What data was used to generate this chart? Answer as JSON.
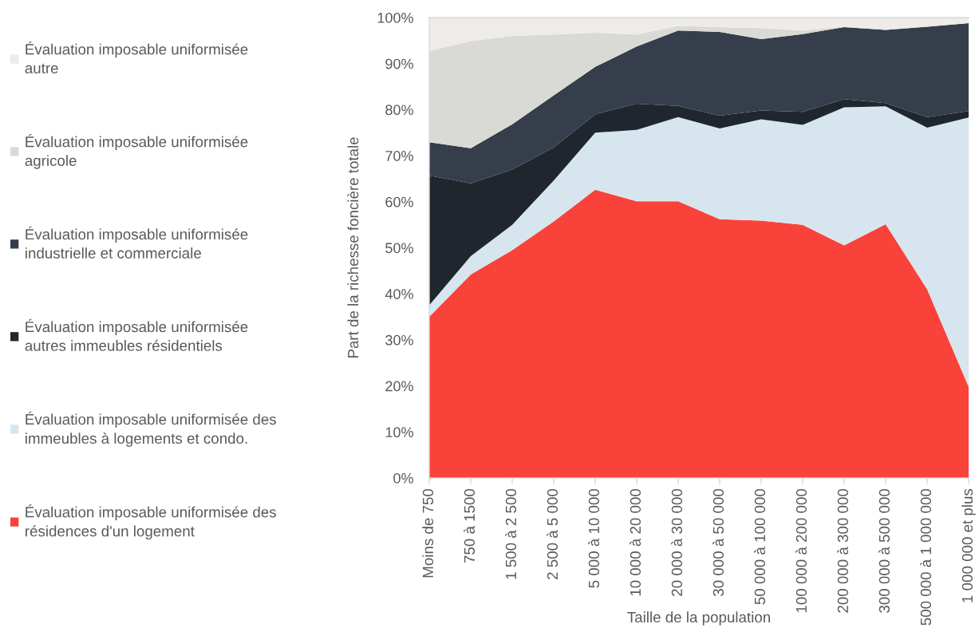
{
  "chart_data": {
    "type": "area",
    "stacked": true,
    "xlabel": "Taille de la population",
    "ylabel": "Part de la richesse foncière totale",
    "categories": [
      "Moins de 750",
      "750 à 1500",
      "1 500 à 2 500",
      "2 500 à 5 000",
      "5 000 à 10 000",
      "10 000 à 20 000",
      "20 000 à 30 000",
      "30 000 à 50 000",
      "50 000 à 100 000",
      "100 000 à 200 000",
      "200 000 à 300 000",
      "300 000 à 500 000",
      "500 000 à 1 000 000",
      "1 000 000 et plus"
    ],
    "series": [
      {
        "name": "Évaluation imposable uniformisée des\nrésidences d'un logement",
        "color": "#f9423a",
        "values": [
          35.0,
          44.2,
          49.5,
          55.7,
          62.6,
          60.1,
          60.1,
          56.2,
          55.9,
          55.0,
          50.5,
          55.1,
          41.0,
          19.8
        ]
      },
      {
        "name": "Évaluation imposable uniformisée des\nimmeubles à logements et condo.",
        "color": "#d7e5ee",
        "values": [
          2.5,
          4.0,
          5.5,
          8.9,
          12.4,
          15.5,
          18.3,
          19.7,
          22.0,
          21.7,
          30.0,
          25.6,
          35.1,
          58.5
        ]
      },
      {
        "name": "Évaluation imposable uniformisée\nautres immeubles résidentiels",
        "color": "#1f262e",
        "values": [
          28.2,
          15.8,
          12.0,
          7.2,
          4.0,
          5.7,
          2.4,
          2.8,
          1.9,
          2.8,
          1.8,
          0.7,
          2.3,
          1.4
        ]
      },
      {
        "name": "Évaluation imposable uniformisée\nindustrielle et commerciale",
        "color": "#353e4a",
        "values": [
          7.2,
          7.6,
          9.8,
          11.3,
          10.3,
          12.4,
          16.4,
          18.2,
          15.5,
          16.9,
          15.6,
          15.9,
          19.6,
          19.1
        ]
      },
      {
        "name": "Évaluation imposable uniformisée\nagricole",
        "color": "#d9dad5",
        "values": [
          19.8,
          23.3,
          19.2,
          13.2,
          7.4,
          2.6,
          1.0,
          1.0,
          2.4,
          0.8,
          0.1,
          0.2,
          0.0,
          0.0
        ]
      },
      {
        "name": "Évaluation imposable uniformisée\nautre",
        "color": "#eeebe8",
        "values": [
          7.3,
          5.1,
          4.0,
          3.7,
          3.3,
          3.7,
          1.8,
          2.1,
          2.3,
          2.8,
          2.0,
          2.5,
          2.0,
          1.2
        ]
      }
    ],
    "ylim": [
      0,
      100
    ],
    "yticks": [
      {
        "value": 0,
        "label": "0%"
      },
      {
        "value": 10,
        "label": "10%"
      },
      {
        "value": 20,
        "label": "20%"
      },
      {
        "value": 30,
        "label": "30%"
      },
      {
        "value": 40,
        "label": "40%"
      },
      {
        "value": 50,
        "label": "50%"
      },
      {
        "value": 60,
        "label": "60%"
      },
      {
        "value": 70,
        "label": "70%"
      },
      {
        "value": 80,
        "label": "80%"
      },
      {
        "value": 90,
        "label": "90%"
      },
      {
        "value": 100,
        "label": "100%"
      }
    ],
    "legend": "left"
  }
}
